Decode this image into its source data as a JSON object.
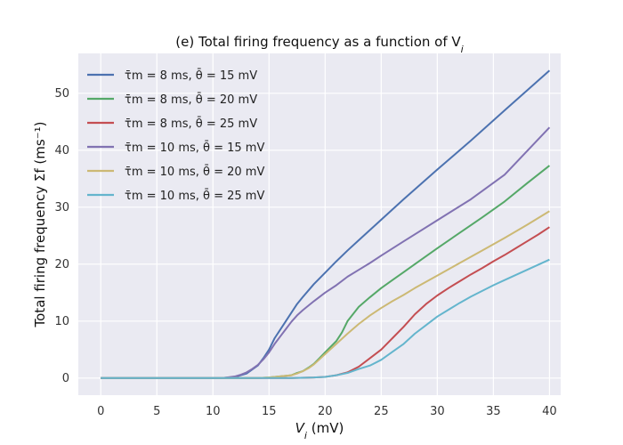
{
  "chart_data": {
    "type": "line",
    "title": "(e) Total firing frequency as a function of V",
    "title_subscript": "i",
    "xlabel": "V",
    "xlabel_subscript": "i",
    "xlabel_unit": " (mV)",
    "ylabel": "Total firing frequency Σf (ms⁻¹)",
    "xlim": [
      -2,
      41
    ],
    "ylim": [
      -3,
      57
    ],
    "xticks": [
      0,
      5,
      10,
      15,
      20,
      25,
      30,
      35,
      40
    ],
    "yticks": [
      0,
      10,
      20,
      30,
      40,
      50
    ],
    "grid": true,
    "background": "#eaeaf2",
    "legend_position": "top-left",
    "series": [
      {
        "name": "τ̄m = 8 ms, θ̄ = 15 mV",
        "color": "#4c72b0",
        "points": [
          [
            0,
            0
          ],
          [
            10,
            0
          ],
          [
            11,
            0.05
          ],
          [
            12,
            0.2
          ],
          [
            12.5,
            0.5
          ],
          [
            13,
            0.8
          ],
          [
            13.5,
            1.5
          ],
          [
            14,
            2.2
          ],
          [
            14.5,
            3.5
          ],
          [
            15,
            5.0
          ],
          [
            15.5,
            7.0
          ],
          [
            16,
            8.5
          ],
          [
            16.5,
            10.0
          ],
          [
            17,
            11.5
          ],
          [
            17.5,
            13.0
          ],
          [
            18,
            14.2
          ],
          [
            19,
            16.5
          ],
          [
            20,
            18.5
          ],
          [
            21,
            20.5
          ],
          [
            22,
            22.4
          ],
          [
            23,
            24.2
          ],
          [
            24,
            26.0
          ],
          [
            25,
            27.8
          ],
          [
            27,
            31.4
          ],
          [
            30,
            36.6
          ],
          [
            33,
            41.7
          ],
          [
            36,
            47.0
          ],
          [
            40,
            54.0
          ]
        ]
      },
      {
        "name": "τ̄m = 8 ms, θ̄ = 20 mV",
        "color": "#55a868",
        "points": [
          [
            0,
            0
          ],
          [
            14,
            0
          ],
          [
            15,
            0.1
          ],
          [
            16,
            0.3
          ],
          [
            17,
            0.5
          ],
          [
            17.5,
            0.9
          ],
          [
            18,
            1.2
          ],
          [
            18.5,
            1.8
          ],
          [
            19,
            2.5
          ],
          [
            19.5,
            3.5
          ],
          [
            20,
            4.5
          ],
          [
            20.5,
            5.5
          ],
          [
            21,
            6.5
          ],
          [
            21.5,
            8.0
          ],
          [
            22,
            10.0
          ],
          [
            23,
            12.5
          ],
          [
            24,
            14.2
          ],
          [
            25,
            15.8
          ],
          [
            26,
            17.2
          ],
          [
            27,
            18.6
          ],
          [
            28,
            20.0
          ],
          [
            30,
            22.8
          ],
          [
            32,
            25.5
          ],
          [
            34,
            28.2
          ],
          [
            36,
            31.0
          ],
          [
            38,
            34.2
          ],
          [
            40,
            37.3
          ]
        ]
      },
      {
        "name": "τ̄m = 8 ms, θ̄ = 25 mV",
        "color": "#c44e52",
        "points": [
          [
            0,
            0
          ],
          [
            17,
            0
          ],
          [
            19,
            0.1
          ],
          [
            20,
            0.2
          ],
          [
            21,
            0.5
          ],
          [
            22,
            1.0
          ],
          [
            23,
            2.0
          ],
          [
            24,
            3.5
          ],
          [
            25,
            5.0
          ],
          [
            26,
            7.0
          ],
          [
            27,
            9.0
          ],
          [
            28,
            11.2
          ],
          [
            29,
            13.0
          ],
          [
            30,
            14.5
          ],
          [
            31,
            15.8
          ],
          [
            32,
            17.0
          ],
          [
            33,
            18.2
          ],
          [
            34,
            19.3
          ],
          [
            35,
            20.5
          ],
          [
            36,
            21.6
          ],
          [
            37,
            22.8
          ],
          [
            38,
            24.0
          ],
          [
            39,
            25.2
          ],
          [
            40,
            26.5
          ]
        ]
      },
      {
        "name": "τ̄m = 10 ms, θ̄ = 15 mV",
        "color": "#8172b2",
        "points": [
          [
            0,
            0
          ],
          [
            10,
            0
          ],
          [
            11,
            0.05
          ],
          [
            12,
            0.3
          ],
          [
            12.5,
            0.6
          ],
          [
            13,
            1.0
          ],
          [
            13.5,
            1.6
          ],
          [
            14,
            2.3
          ],
          [
            14.5,
            3.3
          ],
          [
            15,
            4.5
          ],
          [
            15.5,
            6.0
          ],
          [
            16,
            7.3
          ],
          [
            16.5,
            8.6
          ],
          [
            17,
            9.9
          ],
          [
            17.5,
            11.0
          ],
          [
            18,
            11.9
          ],
          [
            19,
            13.5
          ],
          [
            20,
            15.0
          ],
          [
            21,
            16.3
          ],
          [
            22,
            17.8
          ],
          [
            23,
            19.0
          ],
          [
            24,
            20.2
          ],
          [
            25,
            21.5
          ],
          [
            27,
            24.0
          ],
          [
            30,
            27.7
          ],
          [
            33,
            31.4
          ],
          [
            36,
            35.7
          ],
          [
            40,
            44.0
          ]
        ]
      },
      {
        "name": "τ̄m = 10 ms, θ̄ = 20 mV",
        "color": "#ccb974",
        "points": [
          [
            0,
            0
          ],
          [
            14,
            0
          ],
          [
            15,
            0.1
          ],
          [
            16,
            0.3
          ],
          [
            17,
            0.5
          ],
          [
            17.5,
            0.8
          ],
          [
            18,
            1.2
          ],
          [
            18.5,
            1.7
          ],
          [
            19,
            2.4
          ],
          [
            19.5,
            3.3
          ],
          [
            20,
            4.2
          ],
          [
            20.5,
            5.1
          ],
          [
            21,
            6.0
          ],
          [
            22,
            7.8
          ],
          [
            23,
            9.5
          ],
          [
            24,
            11.0
          ],
          [
            25,
            12.3
          ],
          [
            26,
            13.5
          ],
          [
            27,
            14.6
          ],
          [
            28,
            15.8
          ],
          [
            30,
            18.0
          ],
          [
            32,
            20.2
          ],
          [
            34,
            22.4
          ],
          [
            36,
            24.6
          ],
          [
            38,
            26.9
          ],
          [
            40,
            29.3
          ]
        ]
      },
      {
        "name": "τ̄m = 10 ms, θ̄ = 25 mV",
        "color": "#64b5cd",
        "points": [
          [
            0,
            0
          ],
          [
            17,
            0
          ],
          [
            19,
            0.1
          ],
          [
            20,
            0.2
          ],
          [
            21,
            0.5
          ],
          [
            22,
            0.9
          ],
          [
            23,
            1.6
          ],
          [
            24,
            2.2
          ],
          [
            25,
            3.2
          ],
          [
            26,
            4.6
          ],
          [
            27,
            6.0
          ],
          [
            28,
            7.8
          ],
          [
            29,
            9.3
          ],
          [
            30,
            10.8
          ],
          [
            31,
            12.0
          ],
          [
            32,
            13.2
          ],
          [
            33,
            14.3
          ],
          [
            34,
            15.3
          ],
          [
            35,
            16.3
          ],
          [
            36,
            17.2
          ],
          [
            37,
            18.1
          ],
          [
            38,
            19.0
          ],
          [
            39,
            19.9
          ],
          [
            40,
            20.8
          ]
        ]
      }
    ]
  }
}
